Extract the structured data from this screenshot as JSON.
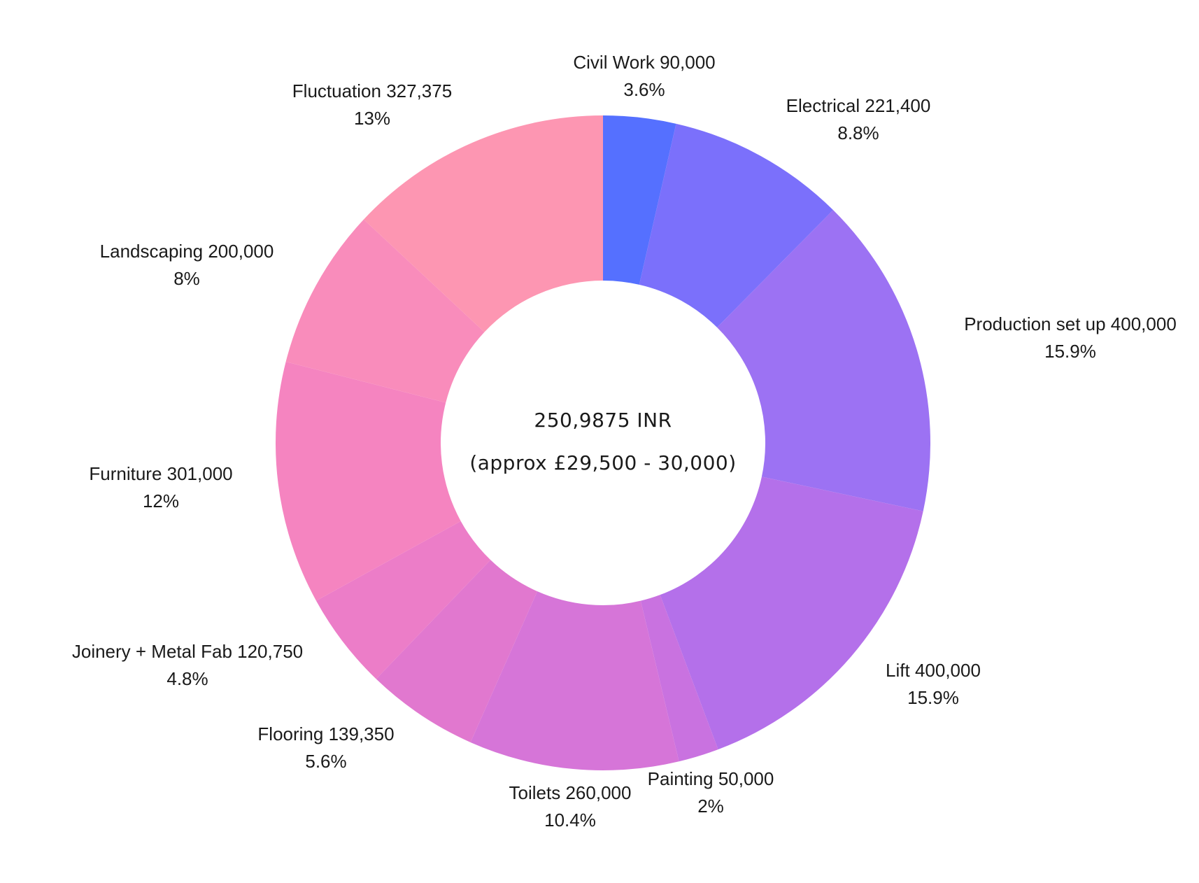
{
  "chart_data": {
    "type": "pie",
    "variant": "donut",
    "start_angle": "12 o'clock",
    "direction": "clockwise",
    "center_label": {
      "line1": "250,9875 INR",
      "line2": "(approx £29,500 - 30,000)"
    },
    "slices": [
      {
        "label": "Civil Work 90,000",
        "percent_label": "3.6%",
        "value": 90000,
        "percent": 3.6,
        "color": "#5570ff"
      },
      {
        "label": "Electrical 221,400",
        "percent_label": "8.8%",
        "value": 221400,
        "percent": 8.8,
        "color": "#7b70fb"
      },
      {
        "label": "Production set up 400,000",
        "percent_label": "15.9%",
        "value": 400000,
        "percent": 15.9,
        "color": "#9c72f3"
      },
      {
        "label": "Lift 400,000",
        "percent_label": "15.9%",
        "value": 400000,
        "percent": 15.9,
        "color": "#b470ea"
      },
      {
        "label": "Painting 50,000",
        "percent_label": "2%",
        "value": 50000,
        "percent": 2.0,
        "color": "#c972e0"
      },
      {
        "label": "Toilets 260,000",
        "percent_label": "10.4%",
        "value": 260000,
        "percent": 10.4,
        "color": "#d675d8"
      },
      {
        "label": "Flooring 139,350",
        "percent_label": "5.6%",
        "value": 139350,
        "percent": 5.6,
        "color": "#e178cf"
      },
      {
        "label": "Joinery + Metal Fab 120,750",
        "percent_label": "4.8%",
        "value": 120750,
        "percent": 4.8,
        "color": "#ec7dc8"
      },
      {
        "label": "Furniture 301,000",
        "percent_label": "12%",
        "value": 301000,
        "percent": 12.0,
        "color": "#f584c0"
      },
      {
        "label": "Landscaping 200,000",
        "percent_label": "8%",
        "value": 200000,
        "percent": 8.0,
        "color": "#f98cbb"
      },
      {
        "label": "Fluctuation 327,375",
        "percent_label": "13%",
        "value": 327375,
        "percent": 13.0,
        "color": "#fd96b2"
      }
    ]
  }
}
